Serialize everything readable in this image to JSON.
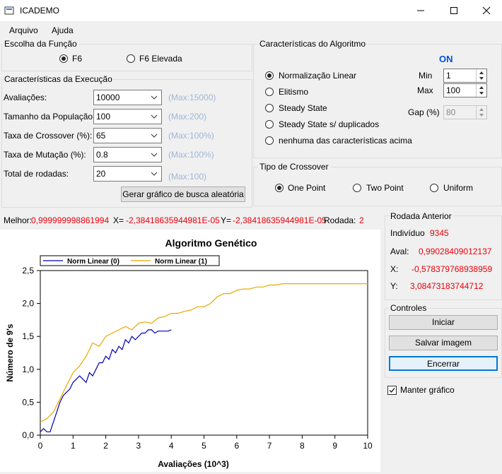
{
  "window": {
    "title": "ICADEMO"
  },
  "menu": [
    "Arquivo",
    "Ajuda"
  ],
  "funcao": {
    "title": "Escolha da Função",
    "options": [
      "F6",
      "F6 Elevada"
    ],
    "selected": 0
  },
  "execucao": {
    "title": "Características da Execução",
    "rows": [
      {
        "label": "Avaliações:",
        "value": "10000",
        "hint": "(Max:15000)"
      },
      {
        "label": "Tamanho da População:",
        "value": "100",
        "hint": "(Max:200)"
      },
      {
        "label": "Taxa de Crossover (%):",
        "value": "65",
        "hint": "(Max:100%)"
      },
      {
        "label": "Taxa de Mutação (%):",
        "value": "0.8",
        "hint": "(Max:100%)"
      },
      {
        "label": "Total de rodadas:",
        "value": "20",
        "hint": "(Max:100)"
      }
    ],
    "random_button": "Gerar gráfico de busca aleatória"
  },
  "algoritmo": {
    "title": "Características do Algoritmo",
    "status": "ON",
    "status_color": "#0050d8",
    "options": [
      "Normalização Linear",
      "Elitismo",
      "Steady State",
      "Steady State s/ duplicados",
      "nenhuma das características acima"
    ],
    "selected": 0,
    "min_label": "Min",
    "min_value": "1",
    "max_label": "Max",
    "max_value": "100",
    "gap_label": "Gap (%)",
    "gap_value": "80"
  },
  "crossover": {
    "title": "Tipo de Crossover",
    "options": [
      "One Point",
      "Two Point",
      "Uniform"
    ],
    "selected": 0
  },
  "status_line": {
    "melhor_label": "Melhor:",
    "melhor_value": "0,999999998861994",
    "x_label": "X=",
    "x_value": "-2,38418635944981E-05",
    "y_label": "Y=",
    "y_value": "-2,38418635944981E-05",
    "rodada_label": "Rodada:",
    "rodada_value": "2"
  },
  "rodada_anterior": {
    "title": "Rodada Anterior",
    "individuo_label": "Indivíduo",
    "individuo_value": "9345",
    "aval_label": "Aval:",
    "aval_value": "0,99028409012137",
    "x_label": "X:",
    "x_value": "-0,578379768938959",
    "y_label": "Y:",
    "y_value": "3,08473183744712"
  },
  "controles": {
    "title": "Controles",
    "iniciar": "Iniciar",
    "salvar": "Salvar imagem",
    "encerrar": "Encerrar",
    "manter_label": "Manter gráfico",
    "manter_checked": true
  },
  "colors": {
    "accent_red": "#e8000b",
    "series0": "#0000b4",
    "series1": "#e8a800"
  },
  "chart_data": {
    "type": "line",
    "title": "Algoritmo Genético",
    "xlabel": "Avaliações (10^3)",
    "ylabel": "Número de 9's",
    "xlim": [
      0,
      10
    ],
    "ylim": [
      0,
      2.5
    ],
    "xticks": [
      "0",
      "1",
      "2",
      "3",
      "4",
      "5",
      "6",
      "7",
      "8",
      "9",
      "10"
    ],
    "yticks": [
      "0,0",
      "0,5",
      "1,0",
      "1,5",
      "2,0",
      "2,5"
    ],
    "legend_position": "top-left",
    "series": [
      {
        "name": "Norm Linear (0)",
        "color": "#0000b4",
        "x": [
          0,
          0.1,
          0.2,
          0.3,
          0.4,
          0.5,
          0.6,
          0.7,
          0.8,
          0.9,
          1.0,
          1.1,
          1.2,
          1.3,
          1.4,
          1.5,
          1.6,
          1.7,
          1.8,
          1.9,
          2.0,
          2.1,
          2.2,
          2.3,
          2.4,
          2.5,
          2.6,
          2.7,
          2.8,
          2.9,
          3.0,
          3.1,
          3.2,
          3.3,
          3.4,
          3.5,
          3.6,
          3.7,
          3.8,
          3.9,
          4.0
        ],
        "y": [
          0.05,
          0.1,
          0.05,
          0.05,
          0.2,
          0.35,
          0.5,
          0.6,
          0.65,
          0.7,
          0.8,
          0.85,
          0.9,
          0.85,
          0.8,
          0.95,
          0.9,
          1.0,
          1.1,
          1.1,
          1.2,
          1.15,
          1.3,
          1.25,
          1.35,
          1.3,
          1.45,
          1.4,
          1.5,
          1.45,
          1.5,
          1.55,
          1.55,
          1.6,
          1.6,
          1.55,
          1.58,
          1.58,
          1.58,
          1.58,
          1.6
        ]
      },
      {
        "name": "Norm Linear (1)",
        "color": "#e8a800",
        "x": [
          0,
          0.2,
          0.4,
          0.6,
          0.8,
          1.0,
          1.2,
          1.4,
          1.6,
          1.8,
          2.0,
          2.2,
          2.4,
          2.6,
          2.8,
          3.0,
          3.2,
          3.4,
          3.6,
          3.8,
          4.0,
          4.2,
          4.4,
          4.6,
          4.8,
          5.0,
          5.2,
          5.4,
          5.6,
          5.8,
          6.0,
          6.2,
          6.4,
          6.6,
          6.8,
          7.0,
          7.2,
          7.4,
          7.6,
          7.8,
          8.0,
          8.5,
          9.0,
          9.5,
          10.0
        ],
        "y": [
          0.2,
          0.25,
          0.35,
          0.55,
          0.75,
          0.95,
          1.05,
          1.2,
          1.4,
          1.35,
          1.5,
          1.55,
          1.6,
          1.65,
          1.6,
          1.7,
          1.72,
          1.7,
          1.78,
          1.8,
          1.85,
          1.85,
          1.88,
          1.9,
          1.95,
          1.95,
          2.0,
          2.1,
          2.15,
          2.15,
          2.2,
          2.22,
          2.22,
          2.25,
          2.25,
          2.28,
          2.28,
          2.3,
          2.3,
          2.3,
          2.3,
          2.3,
          2.3,
          2.3,
          2.3
        ]
      }
    ]
  }
}
